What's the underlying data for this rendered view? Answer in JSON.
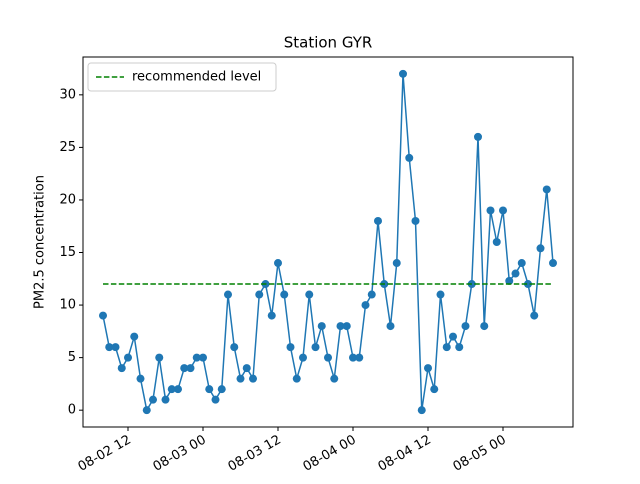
{
  "chart_data": {
    "type": "line",
    "title": "Station GYR",
    "ylabel": "PM2.5 concentration",
    "xlim": [
      4.8,
      83.2
    ],
    "ylim": [
      -1.6,
      33.6
    ],
    "xticks": [
      {
        "value": 12,
        "label": "08-02 12"
      },
      {
        "value": 24,
        "label": "08-03 00"
      },
      {
        "value": 36,
        "label": "08-03 12"
      },
      {
        "value": 48,
        "label": "08-04 00"
      },
      {
        "value": 60,
        "label": "08-04 12"
      },
      {
        "value": 72,
        "label": "08-05 00"
      }
    ],
    "yticks": [
      0,
      5,
      10,
      15,
      20,
      25,
      30
    ],
    "legend": "upper left",
    "series": [
      {
        "name": null,
        "color": "#1f77b4",
        "marker": true,
        "dashed": false,
        "x": [
          8,
          9,
          10,
          11,
          12,
          13,
          14,
          15,
          16,
          17,
          18,
          19,
          20,
          21,
          22,
          23,
          24,
          25,
          26,
          27,
          28,
          29,
          30,
          31,
          32,
          33,
          34,
          35,
          36,
          37,
          38,
          39,
          40,
          41,
          42,
          43,
          44,
          45,
          46,
          47,
          48,
          49,
          50,
          51,
          52,
          53,
          54,
          55,
          56,
          57,
          58,
          59,
          60,
          61,
          62,
          63,
          64,
          65,
          66,
          67,
          68,
          69,
          70,
          71,
          72,
          73,
          74,
          75,
          76,
          77,
          78,
          79,
          80
        ],
        "values": [
          9,
          6,
          6,
          4,
          5,
          7,
          3,
          0,
          1,
          5,
          1,
          2,
          2,
          4,
          4,
          5,
          5,
          2,
          1,
          2,
          11,
          6,
          3,
          4,
          3,
          11,
          12,
          9,
          14,
          11,
          6,
          3,
          5,
          11,
          6,
          8,
          5,
          3,
          8,
          8,
          5,
          5,
          10,
          11,
          18,
          12,
          8,
          14,
          32,
          24,
          18,
          0,
          4,
          2,
          11,
          6,
          7,
          6,
          8,
          12,
          26,
          8,
          19,
          16,
          19,
          12.3,
          13,
          14,
          12,
          9,
          15.4,
          21,
          14
        ]
      },
      {
        "name": "recommended level",
        "color": "#008000",
        "marker": false,
        "dashed": true,
        "x": [
          8,
          80
        ],
        "values": [
          12,
          12
        ]
      }
    ]
  }
}
